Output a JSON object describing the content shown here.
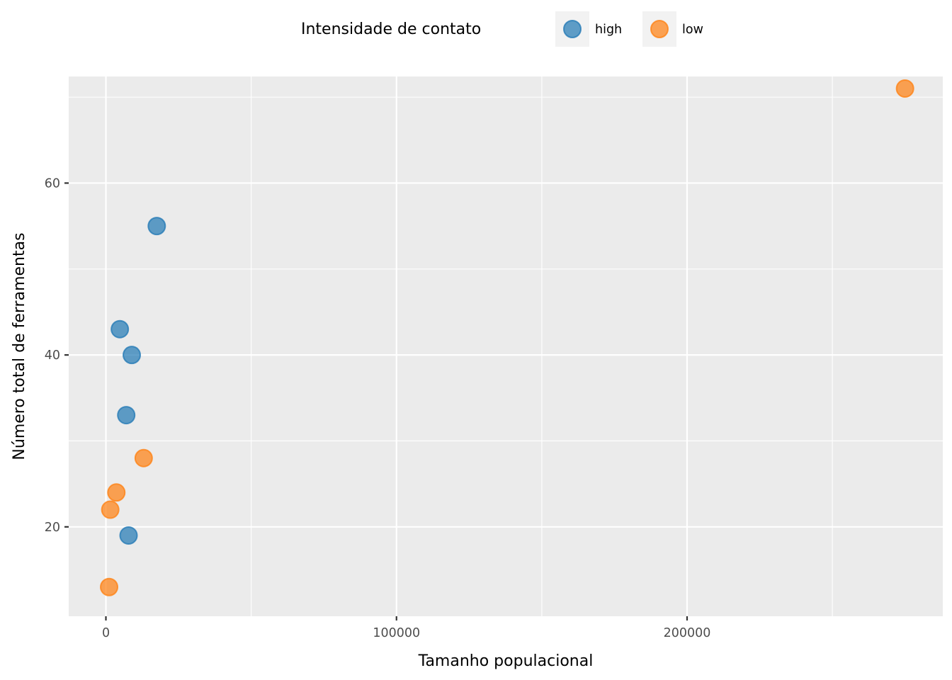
{
  "chart_data": {
    "type": "scatter",
    "xlabel": "Tamanho populacional",
    "ylabel": "Número total de ferramentas",
    "xlim": [
      -12800,
      288000
    ],
    "ylim": [
      9.6,
      72.4
    ],
    "xticks": [
      0,
      100000,
      200000
    ],
    "xtick_labels": [
      "0",
      "100000",
      "200000"
    ],
    "xminor": [
      50000,
      150000,
      250000
    ],
    "yticks": [
      20,
      40,
      60
    ],
    "ytick_labels": [
      "20",
      "40",
      "60"
    ],
    "yminor": [
      30,
      50,
      70
    ],
    "grid": true,
    "legend": {
      "title": "Intensidade de contato",
      "position": "top"
    },
    "series": [
      {
        "name": "high",
        "color": "#1f77b4",
        "points": [
          {
            "x": 17500,
            "y": 55
          },
          {
            "x": 4791,
            "y": 43
          },
          {
            "x": 8900,
            "y": 40
          },
          {
            "x": 7000,
            "y": 33
          },
          {
            "x": 7800,
            "y": 19
          }
        ]
      },
      {
        "name": "low",
        "color": "#ff7f0e",
        "points": [
          {
            "x": 275000,
            "y": 71
          },
          {
            "x": 13000,
            "y": 28
          },
          {
            "x": 3600,
            "y": 24
          },
          {
            "x": 1500,
            "y": 22
          },
          {
            "x": 1100,
            "y": 13
          }
        ]
      }
    ]
  }
}
